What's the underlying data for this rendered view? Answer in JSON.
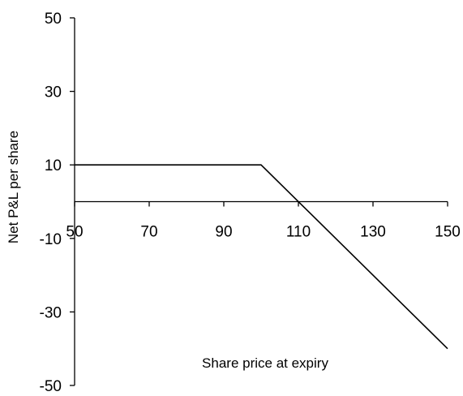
{
  "chart_data": {
    "type": "line",
    "title": "",
    "xlabel": "Share price at expiry",
    "ylabel": "Net P&L per share",
    "xlim": [
      50,
      150
    ],
    "ylim": [
      -50,
      50
    ],
    "x_ticks": [
      "50",
      "70",
      "90",
      "110",
      "130",
      "150"
    ],
    "y_ticks": [
      "50",
      "30",
      "10",
      "-10",
      "-30",
      "-50"
    ],
    "grid": false,
    "legend": "none",
    "series": [
      {
        "points": [
          {
            "x": 50,
            "y": 10
          },
          {
            "x": 100,
            "y": 10
          },
          {
            "x": 150,
            "y": -40
          }
        ]
      }
    ]
  }
}
